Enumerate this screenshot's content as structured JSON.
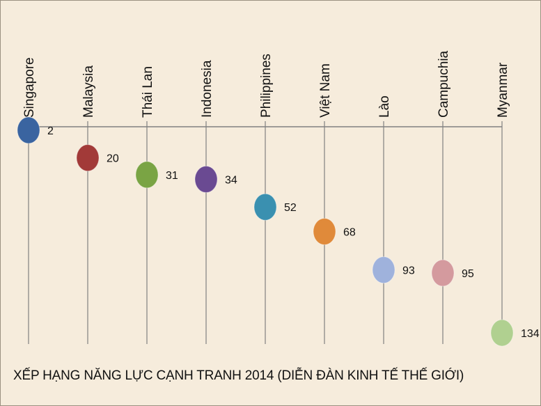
{
  "chart_data": {
    "type": "scatter",
    "title": "XẾP HẠNG NĂNG LỰC CẠNH TRANH 2014 (DIỄN ĐÀN KINH TẾ THẾ GIỚI)",
    "categories": [
      "Singapore",
      "Malaysia",
      "Thái Lan",
      "Indonesia",
      "Philippines",
      "Việt Nam",
      "Lào",
      "Campuchia",
      "Myanmar"
    ],
    "values": [
      2,
      20,
      31,
      34,
      52,
      68,
      93,
      95,
      134
    ],
    "value_labels": [
      "2",
      "20",
      "31",
      "34",
      "52",
      "68",
      "93",
      "95",
      "134"
    ],
    "colors": [
      "#3a64a0",
      "#a23a38",
      "#7aa444",
      "#6a4a92",
      "#3a90b0",
      "#e08a3a",
      "#9fb2dc",
      "#d49a9e",
      "#b0d090"
    ],
    "ylim": [
      2,
      134
    ],
    "y_inverted": true,
    "grid": false,
    "legend": "none",
    "background": "#f6ecdc",
    "line_color": "#808080"
  }
}
